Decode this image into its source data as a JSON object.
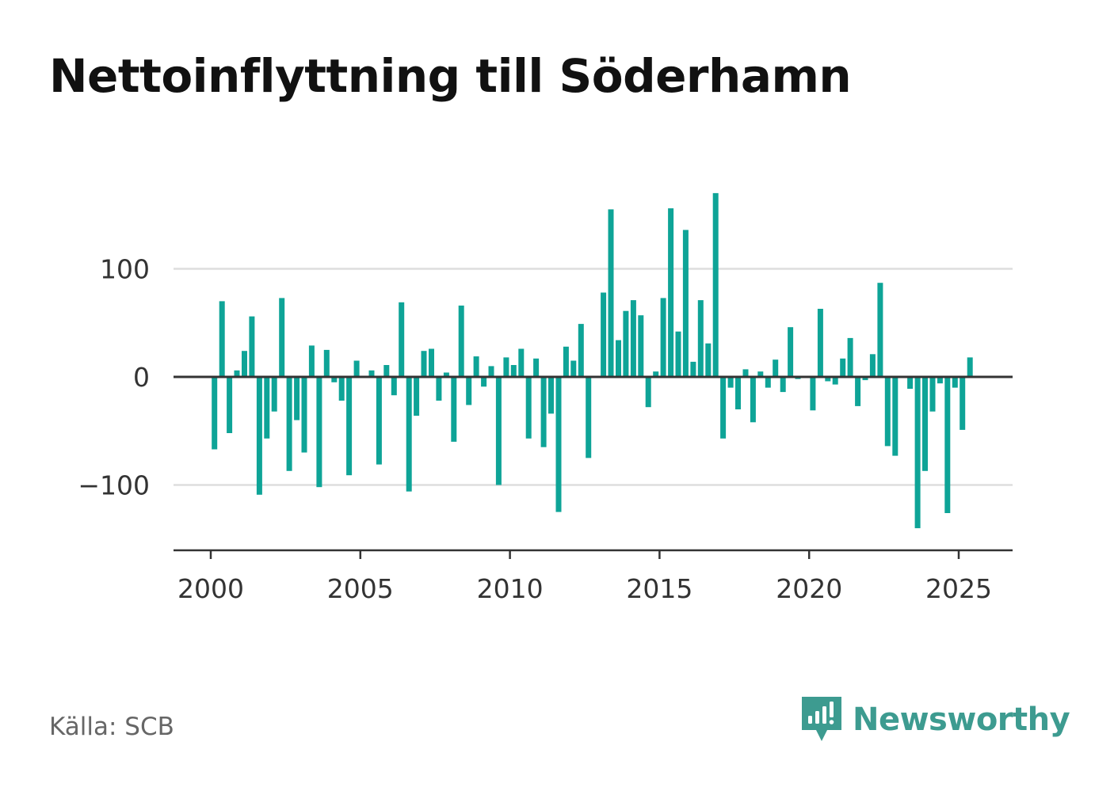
{
  "title": "Nettoinflyttning till Söderhamn",
  "source": "Källa: SCB",
  "brand": {
    "name": "Newsworthy",
    "icon": "newsworthy-logo-icon",
    "color": "#3d9b90"
  },
  "colors": {
    "bar": "#0ea497",
    "zero_line": "#333333",
    "grid": "#dddddd",
    "axis": "#333333"
  },
  "chart_data": {
    "type": "bar",
    "title": "Nettoinflyttning till Söderhamn",
    "xlabel": "",
    "ylabel": "",
    "x_unit": "quarter",
    "xlim": [
      1999.0,
      2027.0
    ],
    "ylim": [
      -160,
      170
    ],
    "yticks": [
      100,
      0,
      -100
    ],
    "ytick_labels": [
      "100",
      "0",
      "−100"
    ],
    "xticks": [
      2000,
      2005,
      2010,
      2015,
      2020,
      2025
    ],
    "xtick_labels": [
      "2000",
      "2005",
      "2010",
      "2015",
      "2020",
      "2025"
    ],
    "grid": true,
    "x": [
      2000.125,
      2000.375,
      2000.625,
      2000.875,
      2001.125,
      2001.375,
      2001.625,
      2001.875,
      2002.125,
      2002.375,
      2002.625,
      2002.875,
      2003.125,
      2003.375,
      2003.625,
      2003.875,
      2004.125,
      2004.375,
      2004.625,
      2004.875,
      2005.125,
      2005.375,
      2005.625,
      2005.875,
      2006.125,
      2006.375,
      2006.625,
      2006.875,
      2007.125,
      2007.375,
      2007.625,
      2007.875,
      2008.125,
      2008.375,
      2008.625,
      2008.875,
      2009.125,
      2009.375,
      2009.625,
      2009.875,
      2010.125,
      2010.375,
      2010.625,
      2010.875,
      2011.125,
      2011.375,
      2011.625,
      2011.875,
      2012.125,
      2012.375,
      2012.625,
      2012.875,
      2013.125,
      2013.375,
      2013.625,
      2013.875,
      2014.125,
      2014.375,
      2014.625,
      2014.875,
      2015.125,
      2015.375,
      2015.625,
      2015.875,
      2016.125,
      2016.375,
      2016.625,
      2016.875,
      2017.125,
      2017.375,
      2017.625,
      2017.875,
      2018.125,
      2018.375,
      2018.625,
      2018.875,
      2019.125,
      2019.375,
      2019.625,
      2019.875,
      2020.125,
      2020.375,
      2020.625,
      2020.875,
      2021.125,
      2021.375,
      2021.625,
      2021.875,
      2022.125,
      2022.375,
      2022.625,
      2022.875,
      2023.125,
      2023.375,
      2023.625,
      2023.875,
      2024.125,
      2024.375,
      2024.625,
      2024.875,
      2025.125,
      2025.375
    ],
    "values": [
      -67,
      70,
      -52,
      6,
      24,
      56,
      -109,
      -57,
      -32,
      73,
      -87,
      -40,
      -70,
      29,
      -102,
      25,
      -5,
      -22,
      -91,
      15,
      0,
      6,
      -81,
      11,
      -17,
      69,
      -106,
      -36,
      24,
      26,
      -22,
      4,
      -60,
      66,
      -26,
      19,
      -9,
      10,
      -100,
      18,
      11,
      26,
      -57,
      17,
      -65,
      -34,
      -125,
      28,
      15,
      49,
      -75,
      0,
      78,
      155,
      34,
      61,
      71,
      57,
      -28,
      5,
      73,
      156,
      42,
      136,
      14,
      71,
      31,
      170,
      -57,
      -10,
      -30,
      7,
      -42,
      5,
      -10,
      16,
      -14,
      46,
      -2,
      0,
      -31,
      63,
      -4,
      -7,
      17,
      36,
      -27,
      -3,
      21,
      87,
      -64,
      -73,
      0,
      -11,
      -140,
      -87,
      -32,
      -6,
      -126,
      -10,
      -49,
      18
    ]
  }
}
